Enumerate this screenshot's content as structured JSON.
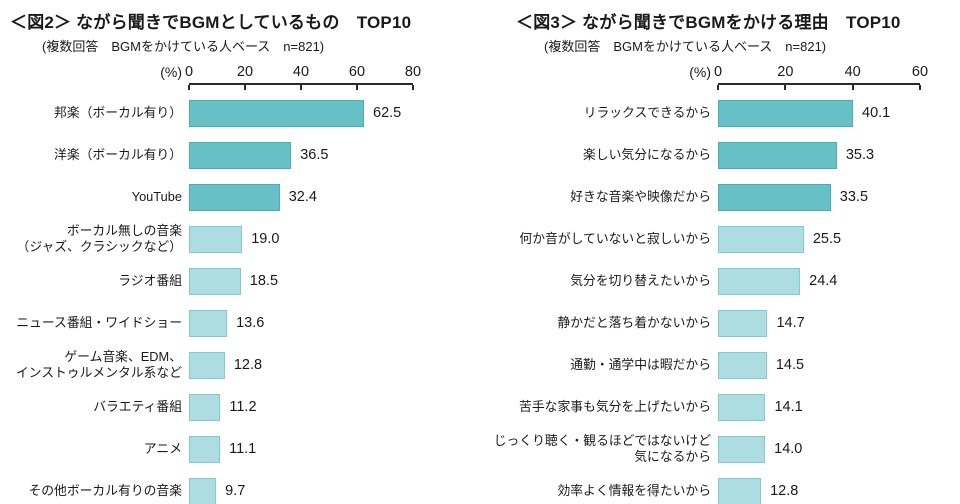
{
  "colors": {
    "bar_dark": "#66c0c6",
    "bar_dark_border": "#47afb6",
    "bar_light": "#aedde1",
    "bar_light_border": "#7fcbd1",
    "axis": "#2b2b2b",
    "text": "#1a1a1a"
  },
  "chart_data": [
    {
      "type": "bar",
      "orientation": "horizontal",
      "title": "＜図2＞ ながら聞きでBGMとしているもの　TOP10",
      "subtitle": "(複数回答　BGMをかけている人ベース　n=821)",
      "unit_label": "(%)",
      "xlim": [
        0,
        80
      ],
      "ticks": [
        0,
        20,
        40,
        60,
        80
      ],
      "grid": false,
      "legend": "none",
      "highlight_top": 3,
      "categories": [
        "邦楽（ボーカル有り）",
        "洋楽（ボーカル有り）",
        "YouTube",
        "ボーカル無しの音楽\n（ジャズ、クラシックなど）",
        "ラジオ番組",
        "ニュース番組・ワイドショー",
        "ゲーム音楽、EDM、\nインストゥルメンタル系など",
        "バラエティ番組",
        "アニメ",
        "その他ボーカル有りの音楽"
      ],
      "values": [
        62.5,
        36.5,
        32.4,
        19.0,
        18.5,
        13.6,
        12.8,
        11.2,
        11.1,
        9.7
      ],
      "value_labels": [
        "62.5",
        "36.5",
        "32.4",
        "19.0",
        "18.5",
        "13.6",
        "12.8",
        "11.2",
        "11.1",
        "9.7"
      ]
    },
    {
      "type": "bar",
      "orientation": "horizontal",
      "title": "＜図3＞ ながら聞きでBGMをかける理由　TOP10",
      "subtitle": "(複数回答　BGMをかけている人ベース　n=821)",
      "unit_label": "(%)",
      "xlim": [
        0,
        60
      ],
      "ticks": [
        0,
        20,
        40,
        60
      ],
      "grid": false,
      "legend": "none",
      "highlight_top": 3,
      "categories": [
        "リラックスできるから",
        "楽しい気分になるから",
        "好きな音楽や映像だから",
        "何か音がしていないと寂しいから",
        "気分を切り替えたいから",
        "静かだと落ち着かないから",
        "通勤・通学中は暇だから",
        "苦手な家事も気分を上げたいから",
        "じっくり聴く・観るほどではないけど\n気になるから",
        "効率よく情報を得たいから"
      ],
      "values": [
        40.1,
        35.3,
        33.5,
        25.5,
        24.4,
        14.7,
        14.5,
        14.1,
        14.0,
        12.8
      ],
      "value_labels": [
        "40.1",
        "35.3",
        "33.5",
        "25.5",
        "24.4",
        "14.7",
        "14.5",
        "14.1",
        "14.0",
        "12.8"
      ]
    }
  ]
}
